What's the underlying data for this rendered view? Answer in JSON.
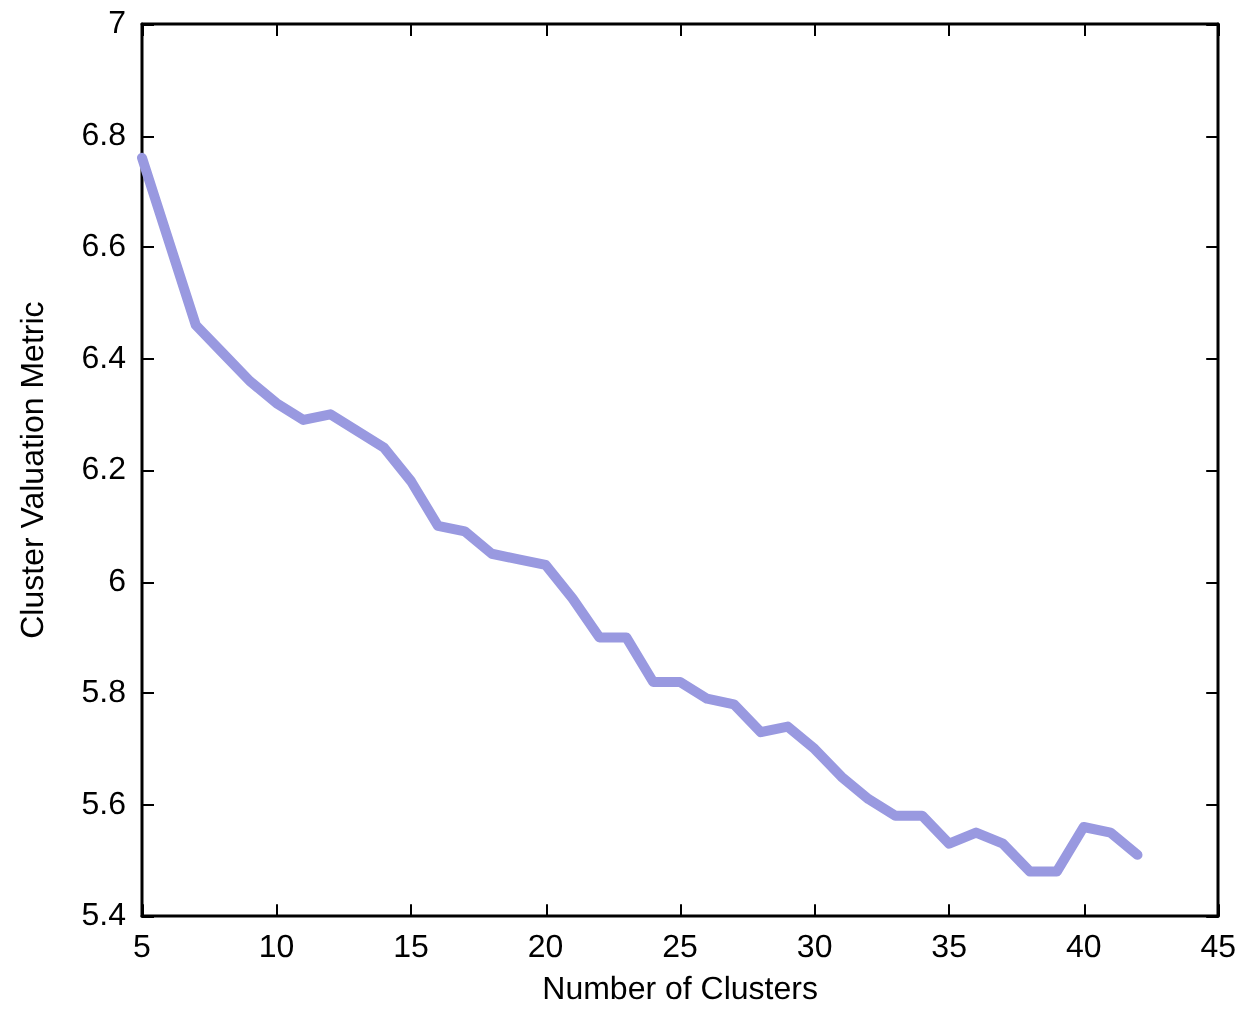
{
  "chart_data": {
    "type": "line",
    "xlabel": "Number of Clusters",
    "ylabel": "Cluster Valuation Metric",
    "x": [
      5,
      6,
      7,
      8,
      9,
      10,
      11,
      12,
      13,
      14,
      15,
      16,
      17,
      18,
      19,
      20,
      21,
      22,
      23,
      24,
      25,
      26,
      27,
      28,
      29,
      30,
      31,
      32,
      33,
      34,
      35,
      36,
      37,
      38,
      39,
      40,
      41,
      42
    ],
    "series": [
      {
        "color": "#9999e0",
        "values": [
          6.76,
          6.61,
          6.46,
          6.41,
          6.36,
          6.32,
          6.29,
          6.3,
          6.27,
          6.24,
          6.18,
          6.1,
          6.09,
          6.05,
          6.04,
          6.03,
          5.97,
          5.9,
          5.9,
          5.82,
          5.82,
          5.79,
          5.78,
          5.73,
          5.74,
          5.7,
          5.65,
          5.61,
          5.58,
          5.58,
          5.53,
          5.55,
          5.53,
          5.48,
          5.48,
          5.56,
          5.55,
          5.51
        ]
      }
    ],
    "xlim": [
      5,
      45
    ],
    "xticks": [
      5,
      10,
      15,
      20,
      25,
      30,
      35,
      40,
      45
    ],
    "ylim": [
      5.4,
      7
    ],
    "yticks": [
      5.4,
      5.6,
      5.8,
      6,
      6.2,
      6.4,
      6.6,
      6.8,
      7
    ],
    "grid": false,
    "marker": "none",
    "line_style": "solid"
  }
}
